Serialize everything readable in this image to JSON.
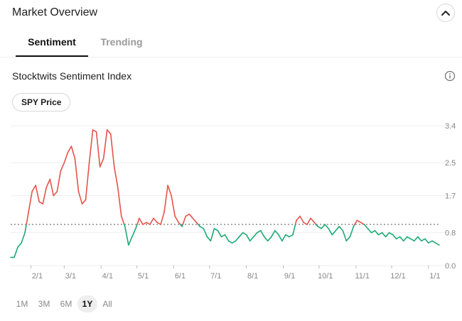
{
  "header": {
    "title": "Market Overview"
  },
  "tabs": [
    {
      "label": "Sentiment"
    },
    {
      "label": "Trending"
    }
  ],
  "section": {
    "title": "Stocktwits Sentiment Index",
    "toggle_label": "SPY Price"
  },
  "ranges": [
    "1M",
    "3M",
    "6M",
    "1Y",
    "All"
  ],
  "active_range": "1Y",
  "colors": {
    "above": "#e5534b",
    "below": "#1daa76",
    "grid": "#eeeeee",
    "reference": "#555555",
    "axis_text": "#888888"
  },
  "chart_data": {
    "type": "line",
    "title": "",
    "xlabel": "",
    "ylabel": "",
    "y_ticks": [
      "0.0",
      "0.8",
      "1.7",
      "2.5",
      "3.4"
    ],
    "y_tick_values": [
      0.0,
      0.8,
      1.7,
      2.5,
      3.4
    ],
    "ylim": [
      0,
      3.4
    ],
    "reference_line": 1.0,
    "x_tick_labels": [
      "2/1",
      "3/1",
      "4/1",
      "5/1",
      "6/1",
      "7/1",
      "8/1",
      "9/1",
      "10/1",
      "11/1",
      "12/1",
      "1/1"
    ],
    "x_tick_day": [
      17,
      45,
      76,
      106,
      137,
      167,
      198,
      229,
      259,
      290,
      320,
      351
    ],
    "series": [
      {
        "day": [
          0,
          3,
          6,
          9,
          12,
          15,
          18,
          21,
          24,
          27,
          30,
          33,
          36,
          39,
          42,
          45,
          48,
          51,
          54,
          57,
          60,
          63,
          66,
          69,
          72,
          75,
          78,
          81,
          84,
          87,
          90,
          93,
          96,
          99,
          102,
          105,
          108,
          111,
          114,
          117,
          120,
          123,
          126,
          129,
          132,
          135,
          138,
          141,
          144,
          147,
          150,
          153,
          156,
          159,
          162,
          165,
          168,
          171,
          174,
          177,
          180,
          183,
          186,
          189,
          192,
          195,
          198,
          201,
          204,
          207,
          210,
          213,
          216,
          219,
          222,
          225,
          228,
          231,
          234,
          237,
          240,
          243,
          246,
          249,
          252,
          255,
          258,
          261,
          264,
          267,
          270,
          273,
          276,
          279,
          282,
          285,
          288,
          291,
          294,
          297,
          300,
          303,
          306,
          309,
          312,
          315,
          318,
          321,
          324,
          327,
          330,
          333,
          336,
          339,
          342,
          345,
          348,
          351,
          354,
          357,
          360
        ],
        "values": [
          0.2,
          0.2,
          0.45,
          0.55,
          0.8,
          1.3,
          1.8,
          1.95,
          1.55,
          1.5,
          1.9,
          2.1,
          1.7,
          1.8,
          2.3,
          2.5,
          2.75,
          2.9,
          2.6,
          1.8,
          1.5,
          1.6,
          2.5,
          3.3,
          3.25,
          2.4,
          2.6,
          3.3,
          3.2,
          2.4,
          1.9,
          1.2,
          0.95,
          0.5,
          0.7,
          0.9,
          1.15,
          1.0,
          1.05,
          1.0,
          1.15,
          1.05,
          1.0,
          1.3,
          1.95,
          1.7,
          1.2,
          1.05,
          0.95,
          1.2,
          1.25,
          1.15,
          1.05,
          0.95,
          0.9,
          0.7,
          0.6,
          0.9,
          0.85,
          0.7,
          0.75,
          0.6,
          0.55,
          0.6,
          0.7,
          0.8,
          0.75,
          0.6,
          0.7,
          0.8,
          0.85,
          0.7,
          0.6,
          0.7,
          0.85,
          0.75,
          0.6,
          0.75,
          0.7,
          0.75,
          1.1,
          1.2,
          1.05,
          1.0,
          1.15,
          1.05,
          0.95,
          0.9,
          1.0,
          0.9,
          0.75,
          0.85,
          0.95,
          0.85,
          0.6,
          0.7,
          0.95,
          1.1,
          1.05,
          1.0,
          0.9,
          0.8,
          0.85,
          0.75,
          0.8,
          0.7,
          0.8,
          0.75,
          0.65,
          0.7,
          0.6,
          0.7,
          0.65,
          0.6,
          0.7,
          0.6,
          0.65,
          0.55,
          0.6,
          0.55,
          0.5
        ]
      }
    ]
  }
}
